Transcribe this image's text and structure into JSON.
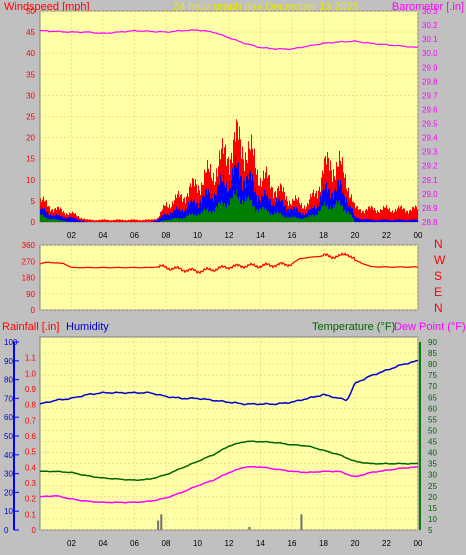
{
  "header": {
    "windspeed_label": "Windspeed [mph]",
    "title": "24 hour graph day   December 13 2025",
    "barometer_label": "Barometer [.in]"
  },
  "lower_header": {
    "rainfall_label": "Rainfall [.in]",
    "humidity_label": "Humidity",
    "temperature_label": "Temperature (°F)",
    "dewpoint_label": "Dew Point (°F)"
  },
  "colors": {
    "plot_bg": "#ffffa8",
    "frame_bg": "#c0c0c0",
    "grid": "#e8c878",
    "gust": "#ff0000",
    "wind_avg": "#0000ff",
    "wind_low": "#008000",
    "barometer": "#ff00ff",
    "direction": "#ff0000",
    "humidity": "#0000cc",
    "temperature": "#006400",
    "dewpoint": "#ff00ff",
    "rain": "#707070"
  },
  "chart_data": [
    {
      "type": "bar",
      "title": "24 hour graph day   December 13 2025",
      "xlabel": "",
      "ylabel": "Windspeed [mph]",
      "x_ticks": [
        "02",
        "04",
        "06",
        "08",
        "10",
        "12",
        "14",
        "16",
        "18",
        "20",
        "22",
        "00"
      ],
      "ylim": [
        0,
        50
      ],
      "y_ticks": [
        0,
        5,
        10,
        15,
        20,
        25,
        30,
        35,
        40,
        45,
        50
      ],
      "y2label": "Barometer [.in]",
      "y2lim": [
        28.8,
        30.3
      ],
      "y2_ticks": [
        28.8,
        28.9,
        29.0,
        29.1,
        29.2,
        29.3,
        29.4,
        29.5,
        29.6,
        29.7,
        29.8,
        29.9,
        30.0,
        30.1,
        30.2,
        30.3
      ],
      "grid": true,
      "series": [
        {
          "name": "Windspeed gust",
          "hours": [
            0,
            1,
            2,
            3,
            4,
            5,
            6,
            7,
            7.5,
            8,
            9,
            10,
            11,
            12,
            12.5,
            13,
            13.5,
            14,
            15,
            16,
            17,
            17.5,
            18,
            18.5,
            19,
            19.5,
            20,
            21,
            22,
            23,
            24
          ],
          "values": [
            5,
            3,
            2,
            0.5,
            0.5,
            0.5,
            0.5,
            0.5,
            1,
            4,
            6,
            9,
            12,
            17,
            19,
            18,
            15,
            11,
            8,
            5,
            4,
            7,
            12,
            14,
            13,
            10,
            3,
            3,
            3,
            3,
            3
          ]
        },
        {
          "name": "Windspeed average",
          "hours": [
            0,
            1,
            2,
            3,
            4,
            5,
            6,
            7,
            7.5,
            8,
            9,
            10,
            11,
            12,
            12.5,
            13,
            13.5,
            14,
            15,
            16,
            17,
            17.5,
            18,
            18.5,
            19,
            19.5,
            20,
            21,
            22,
            23,
            24
          ],
          "values": [
            3,
            1.5,
            1,
            0,
            0,
            0,
            0,
            0,
            0.5,
            2,
            3,
            5,
            7,
            10,
            12,
            11,
            9,
            6,
            5,
            3,
            2,
            4,
            7,
            8,
            8,
            6,
            1,
            0.5,
            0.5,
            0.5,
            0.5
          ]
        },
        {
          "name": "Windspeed low",
          "hours": [
            0,
            1,
            2,
            3,
            4,
            5,
            6,
            7,
            7.5,
            8,
            9,
            10,
            11,
            12,
            12.5,
            13,
            13.5,
            14,
            15,
            16,
            17,
            17.5,
            18,
            18.5,
            19,
            19.5,
            20,
            21,
            22,
            23,
            24
          ],
          "values": [
            1.5,
            0.5,
            0,
            0,
            0,
            0,
            0,
            0,
            0,
            0.5,
            1,
            2,
            3,
            5,
            6,
            5.5,
            4,
            3,
            2,
            1,
            1,
            2,
            3.5,
            4,
            4,
            3,
            0,
            0,
            0,
            0,
            0
          ]
        },
        {
          "name": "Barometer",
          "axis": "y2",
          "hours": [
            0,
            1,
            2,
            3,
            4,
            5,
            6,
            7,
            8,
            9,
            10,
            11,
            12,
            13,
            14,
            15,
            16,
            17,
            18,
            19,
            20,
            21,
            22,
            23,
            24
          ],
          "values": [
            30.16,
            30.155,
            30.15,
            30.15,
            30.14,
            30.15,
            30.16,
            30.155,
            30.15,
            30.16,
            30.165,
            30.15,
            30.11,
            30.07,
            30.04,
            30.03,
            30.03,
            30.05,
            30.07,
            30.08,
            30.085,
            30.07,
            30.06,
            30.05,
            30.04
          ]
        }
      ]
    },
    {
      "type": "line",
      "ylabel": "Wind direction",
      "ylim": [
        0,
        360
      ],
      "y_ticks": [
        0,
        90,
        180,
        270,
        360
      ],
      "right_labels": [
        "N",
        "W",
        "S",
        "E",
        "N"
      ],
      "grid": true,
      "series": [
        {
          "name": "Wind direction",
          "hours": [
            0,
            0.5,
            1,
            1.5,
            2,
            3,
            4,
            5,
            6,
            7,
            7.5,
            8,
            9,
            10,
            11,
            12,
            13,
            14,
            15,
            16,
            16.5,
            17,
            18,
            19,
            19.5,
            20,
            21,
            22,
            23,
            24
          ],
          "values": [
            255,
            265,
            260,
            258,
            235,
            235,
            235,
            235,
            235,
            235,
            240,
            235,
            225,
            215,
            225,
            240,
            245,
            245,
            250,
            255,
            285,
            290,
            300,
            295,
            315,
            275,
            240,
            238,
            238,
            238
          ]
        }
      ]
    },
    {
      "type": "line",
      "x_ticks": [
        "02",
        "04",
        "06",
        "08",
        "10",
        "12",
        "14",
        "16",
        "18",
        "20",
        "22",
        "00"
      ],
      "ylabel": "Rainfall [.in]",
      "ylim": [
        0,
        1.2
      ],
      "y_ticks": [
        0,
        0.1,
        0.2,
        0.3,
        0.4,
        0.5,
        0.6,
        0.7,
        0.8,
        0.9,
        1.0,
        1.1
      ],
      "humidity_ticks": [
        0,
        10,
        20,
        30,
        40,
        50,
        60,
        70,
        80,
        90,
        100
      ],
      "y2label": "Temperature (°F)",
      "y2lim": [
        5,
        90
      ],
      "y2_ticks": [
        5,
        10,
        15,
        20,
        25,
        30,
        35,
        40,
        45,
        50,
        55,
        60,
        65,
        70,
        75,
        80,
        85,
        90
      ],
      "grid": true,
      "series": [
        {
          "name": "Humidity",
          "hours": [
            0,
            1,
            2,
            3,
            4,
            5,
            6,
            7,
            8,
            9,
            10,
            11,
            12,
            13,
            14,
            15,
            16,
            17,
            18,
            19,
            19.5,
            20,
            21,
            22,
            23,
            24
          ],
          "values": [
            67,
            69,
            70,
            72,
            73,
            73,
            73,
            73,
            71,
            70,
            70,
            69,
            68,
            67,
            67,
            67,
            68,
            70,
            72,
            70,
            69,
            78,
            82,
            85,
            88,
            90
          ]
        },
        {
          "name": "Temperature (°F)",
          "hours": [
            0,
            1,
            2,
            3,
            4,
            5,
            6,
            7,
            8,
            9,
            10,
            11,
            12,
            13,
            14,
            15,
            16,
            17,
            18,
            19,
            20,
            21,
            22,
            23,
            24
          ],
          "values": [
            31.5,
            31.5,
            31,
            29.5,
            28.5,
            28,
            27.5,
            28,
            30,
            33,
            36,
            39,
            43,
            45,
            45,
            44.5,
            43.5,
            43,
            41,
            39,
            36,
            35,
            35,
            35,
            35
          ]
        },
        {
          "name": "Dew Point (°F)",
          "hours": [
            0,
            1,
            2,
            3,
            4,
            5,
            6,
            7,
            8,
            9,
            10,
            11,
            12,
            13,
            14,
            15,
            16,
            17,
            18,
            19,
            20,
            21,
            22,
            23,
            24
          ],
          "values": [
            20,
            20.5,
            19,
            18,
            17.5,
            17.5,
            17.5,
            18,
            19.5,
            22,
            25,
            27.5,
            31,
            33.5,
            33.5,
            32.5,
            31.5,
            31,
            31.5,
            31.5,
            29,
            31,
            32,
            33,
            33.5
          ]
        },
        {
          "name": "Rainfall [.in]",
          "type": "bar",
          "hours": [
            7.5,
            7.7,
            13.3,
            16.6
          ],
          "values": [
            0.06,
            0.1,
            0.02,
            0.1
          ]
        }
      ]
    }
  ]
}
